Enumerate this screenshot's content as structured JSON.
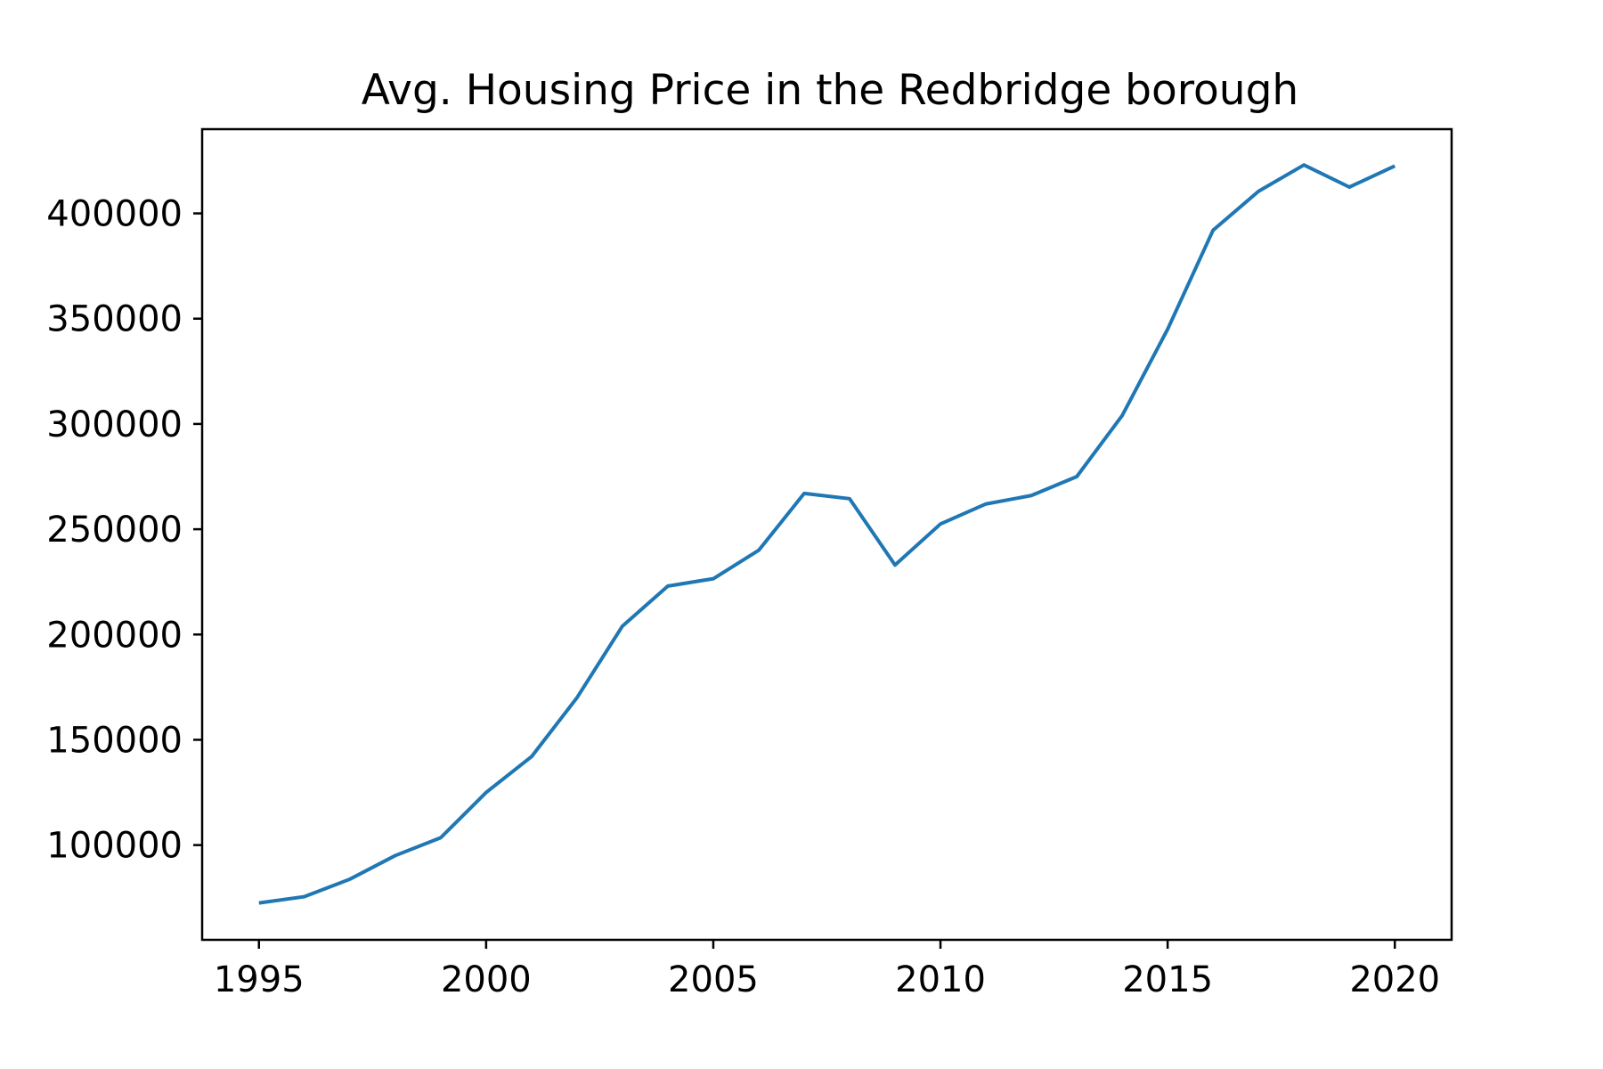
{
  "chart_data": {
    "type": "line",
    "title": "Avg. Housing Price in the Redbridge borough",
    "xlabel": "",
    "ylabel": "",
    "x": [
      1995,
      1996,
      1997,
      1998,
      1999,
      2000,
      2001,
      2002,
      2003,
      2004,
      2005,
      2006,
      2007,
      2008,
      2009,
      2010,
      2011,
      2012,
      2013,
      2014,
      2015,
      2016,
      2017,
      2018,
      2019,
      2020
    ],
    "series": [
      {
        "values": [
          72500,
          75500,
          83800,
          95000,
          103500,
          125000,
          142000,
          170000,
          204000,
          223000,
          226500,
          240000,
          267000,
          264500,
          233000,
          252500,
          262000,
          266000,
          275000,
          304000,
          345000,
          392000,
          410500,
          423000,
          412500,
          422500
        ],
        "color": "#1f77b4"
      }
    ],
    "xlim": [
      1993.75,
      2021.25
    ],
    "ylim": [
      55000,
      440000
    ],
    "x_ticks": [
      "1995",
      "2000",
      "2005",
      "2010",
      "2015",
      "2020"
    ],
    "y_ticks": [
      "100000",
      "150000",
      "200000",
      "250000",
      "300000",
      "350000",
      "400000"
    ],
    "grid": false,
    "legend": "none"
  }
}
